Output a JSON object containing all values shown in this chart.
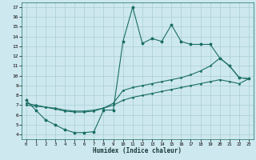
{
  "xlabel": "Humidex (Indice chaleur)",
  "bg_color": "#cde8ee",
  "grid_color": "#aacdd6",
  "line_color": "#1a6e64",
  "xlim": [
    -0.5,
    23.5
  ],
  "ylim": [
    3.5,
    17.5
  ],
  "xticks": [
    0,
    1,
    2,
    3,
    4,
    5,
    6,
    7,
    8,
    9,
    10,
    11,
    12,
    13,
    14,
    15,
    16,
    17,
    18,
    19,
    20,
    21,
    22,
    23
  ],
  "yticks": [
    4,
    5,
    6,
    7,
    8,
    9,
    10,
    11,
    12,
    13,
    14,
    15,
    16,
    17
  ],
  "line1_x": [
    0,
    1,
    2,
    3,
    4,
    5,
    6,
    7,
    8,
    9,
    10,
    11,
    12,
    13,
    14,
    15,
    16,
    17,
    18,
    19,
    20,
    21,
    22,
    23
  ],
  "line1_y": [
    7.5,
    6.5,
    5.5,
    5.0,
    4.5,
    4.2,
    4.2,
    4.3,
    6.5,
    6.5,
    13.5,
    17.0,
    13.3,
    13.8,
    13.5,
    15.2,
    13.5,
    13.2,
    13.2,
    13.2,
    11.8,
    11.0,
    9.8,
    9.7
  ],
  "line2_x": [
    0,
    1,
    2,
    3,
    4,
    5,
    6,
    7,
    8,
    9,
    10,
    11,
    12,
    13,
    14,
    15,
    16,
    17,
    18,
    19,
    20,
    21,
    22,
    23
  ],
  "line2_y": [
    7.2,
    7.0,
    6.8,
    6.6,
    6.4,
    6.3,
    6.3,
    6.4,
    6.7,
    7.2,
    8.5,
    8.8,
    9.0,
    9.2,
    9.4,
    9.6,
    9.8,
    10.1,
    10.5,
    11.0,
    11.8,
    11.0,
    9.8,
    9.7
  ],
  "line3_x": [
    0,
    1,
    2,
    3,
    4,
    5,
    6,
    7,
    8,
    9,
    10,
    11,
    12,
    13,
    14,
    15,
    16,
    17,
    18,
    19,
    20,
    21,
    22,
    23
  ],
  "line3_y": [
    7.0,
    6.9,
    6.8,
    6.7,
    6.5,
    6.4,
    6.4,
    6.5,
    6.7,
    7.0,
    7.5,
    7.8,
    8.0,
    8.2,
    8.4,
    8.6,
    8.8,
    9.0,
    9.2,
    9.4,
    9.6,
    9.4,
    9.2,
    9.7
  ]
}
